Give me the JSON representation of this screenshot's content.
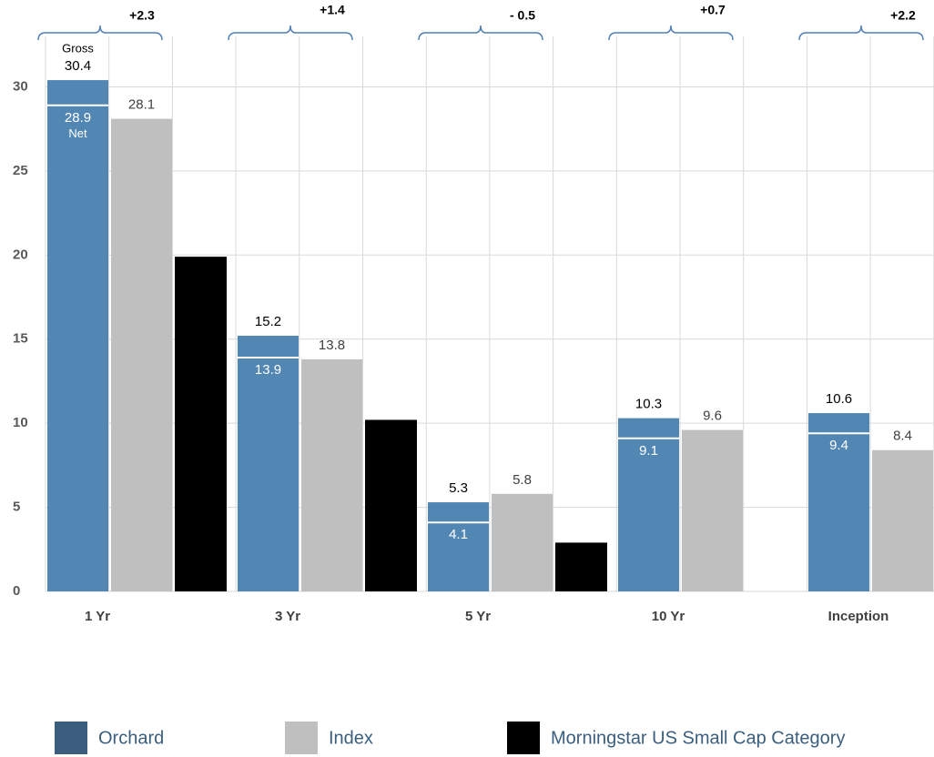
{
  "chart_data": {
    "type": "bar",
    "categories": [
      "1 Yr",
      "3 Yr",
      "5 Yr",
      "10 Yr",
      "Inception"
    ],
    "series": [
      {
        "name": "Orchard",
        "color": "#5286b3",
        "legend_color": "#3b5e7e",
        "values": [
          30.4,
          15.2,
          5.3,
          10.3,
          10.6
        ],
        "net_values": [
          28.9,
          13.9,
          4.1,
          9.1,
          9.4
        ]
      },
      {
        "name": "Index",
        "color": "#bfbfbf",
        "values": [
          28.1,
          13.8,
          5.8,
          9.6,
          8.4
        ]
      },
      {
        "name": "Morningstar US Small Cap Category",
        "color": "#000000",
        "values": [
          19.9,
          10.2,
          2.9,
          null,
          null
        ]
      }
    ],
    "gross_label": "Gross",
    "net_label": "Net",
    "annotations": [
      "+2.3",
      "+1.4",
      "- 0.5",
      "+0.7",
      "+2.2"
    ],
    "ylim": [
      0,
      33
    ],
    "yticks": [
      0,
      5,
      10,
      15,
      20,
      25,
      30
    ],
    "grid": true
  }
}
